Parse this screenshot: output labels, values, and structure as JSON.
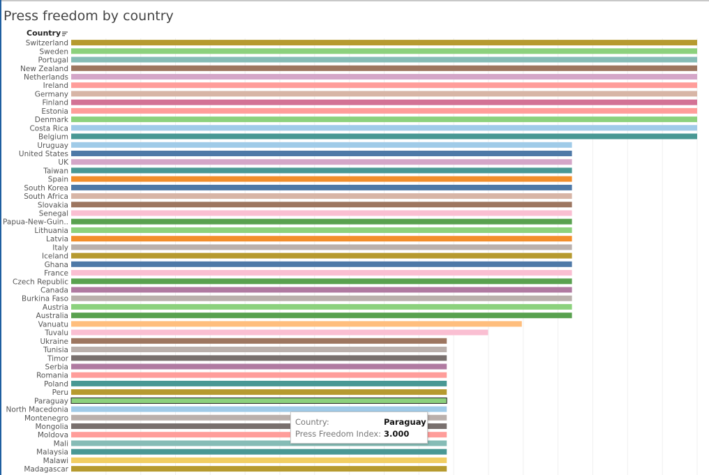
{
  "chart_data": {
    "type": "bar",
    "orientation": "horizontal",
    "title": "Press freedom by country",
    "row_header": "Country",
    "categories": [
      "Switzerland",
      "Sweden",
      "Portugal",
      "New Zealand",
      "Netherlands",
      "Ireland",
      "Germany",
      "Finland",
      "Estonia",
      "Denmark",
      "Costa Rica",
      "Belgium",
      "Uruguay",
      "United States",
      "UK",
      "Taiwan",
      "Spain",
      "South Korea",
      "South Africa",
      "Slovakia",
      "Senegal",
      "Papua-New-Guin..",
      "Lithuania",
      "Latvia",
      "Italy",
      "Iceland",
      "Ghana",
      "France",
      "Czech Republic",
      "Canada",
      "Burkina Faso",
      "Austria",
      "Australia",
      "Vanuatu",
      "Tuvalu",
      "Ukraine",
      "Tunisia",
      "Timor",
      "Serbia",
      "Romania",
      "Poland",
      "Peru",
      "Paraguay",
      "North Macedonia",
      "Montenegro",
      "Mongolia",
      "Moldova",
      "Mali",
      "Malaysia",
      "Malawi",
      "Madagascar"
    ],
    "values": [
      5,
      5,
      5,
      5,
      5,
      5,
      5,
      5,
      5,
      5,
      5,
      5,
      4,
      4,
      4,
      4,
      4,
      4,
      4,
      4,
      4,
      4,
      4,
      4,
      4,
      4,
      4,
      4,
      4,
      4,
      4,
      4,
      4,
      3.6,
      3.33,
      3,
      3,
      3,
      3,
      3,
      3,
      3,
      3,
      3,
      3,
      3,
      3,
      3,
      3,
      3,
      3
    ],
    "colors": [
      "#b69a2f",
      "#8cd17d",
      "#86bcb6",
      "#9d7660",
      "#d4a6c8",
      "#ff9d9a",
      "#d7b5a6",
      "#d37295",
      "#ff9d9a",
      "#8cd17d",
      "#a0cbe8",
      "#499894",
      "#a0cbe8",
      "#4e79a7",
      "#d4a6c8",
      "#499894",
      "#f28e2b",
      "#4e79a7",
      "#d7b5a6",
      "#9d7660",
      "#fabfd2",
      "#59a14f",
      "#8cd17d",
      "#f28e2b",
      "#bab0ac",
      "#b69a2f",
      "#4e79a7",
      "#fabfd2",
      "#59a14f",
      "#b07aa1",
      "#bab0ac",
      "#8cd17d",
      "#59a14f",
      "#ffbe7d",
      "#fabfd2",
      "#9d7660",
      "#bab0ac",
      "#79706e",
      "#b07aa1",
      "#ff9d9a",
      "#499894",
      "#b69a2f",
      "#8cd17d",
      "#a0cbe8",
      "#bab0ac",
      "#79706e",
      "#ff9d9a",
      "#86bcb6",
      "#499894",
      "#f1ce63",
      "#b69a2f"
    ],
    "xlim": [
      0,
      5
    ],
    "grid": true,
    "highlighted": "Paraguay"
  },
  "tooltip": {
    "country_label": "Country:",
    "country_value": "Paraguay",
    "index_label": "Press Freedom Index:",
    "index_value": "3.000"
  }
}
